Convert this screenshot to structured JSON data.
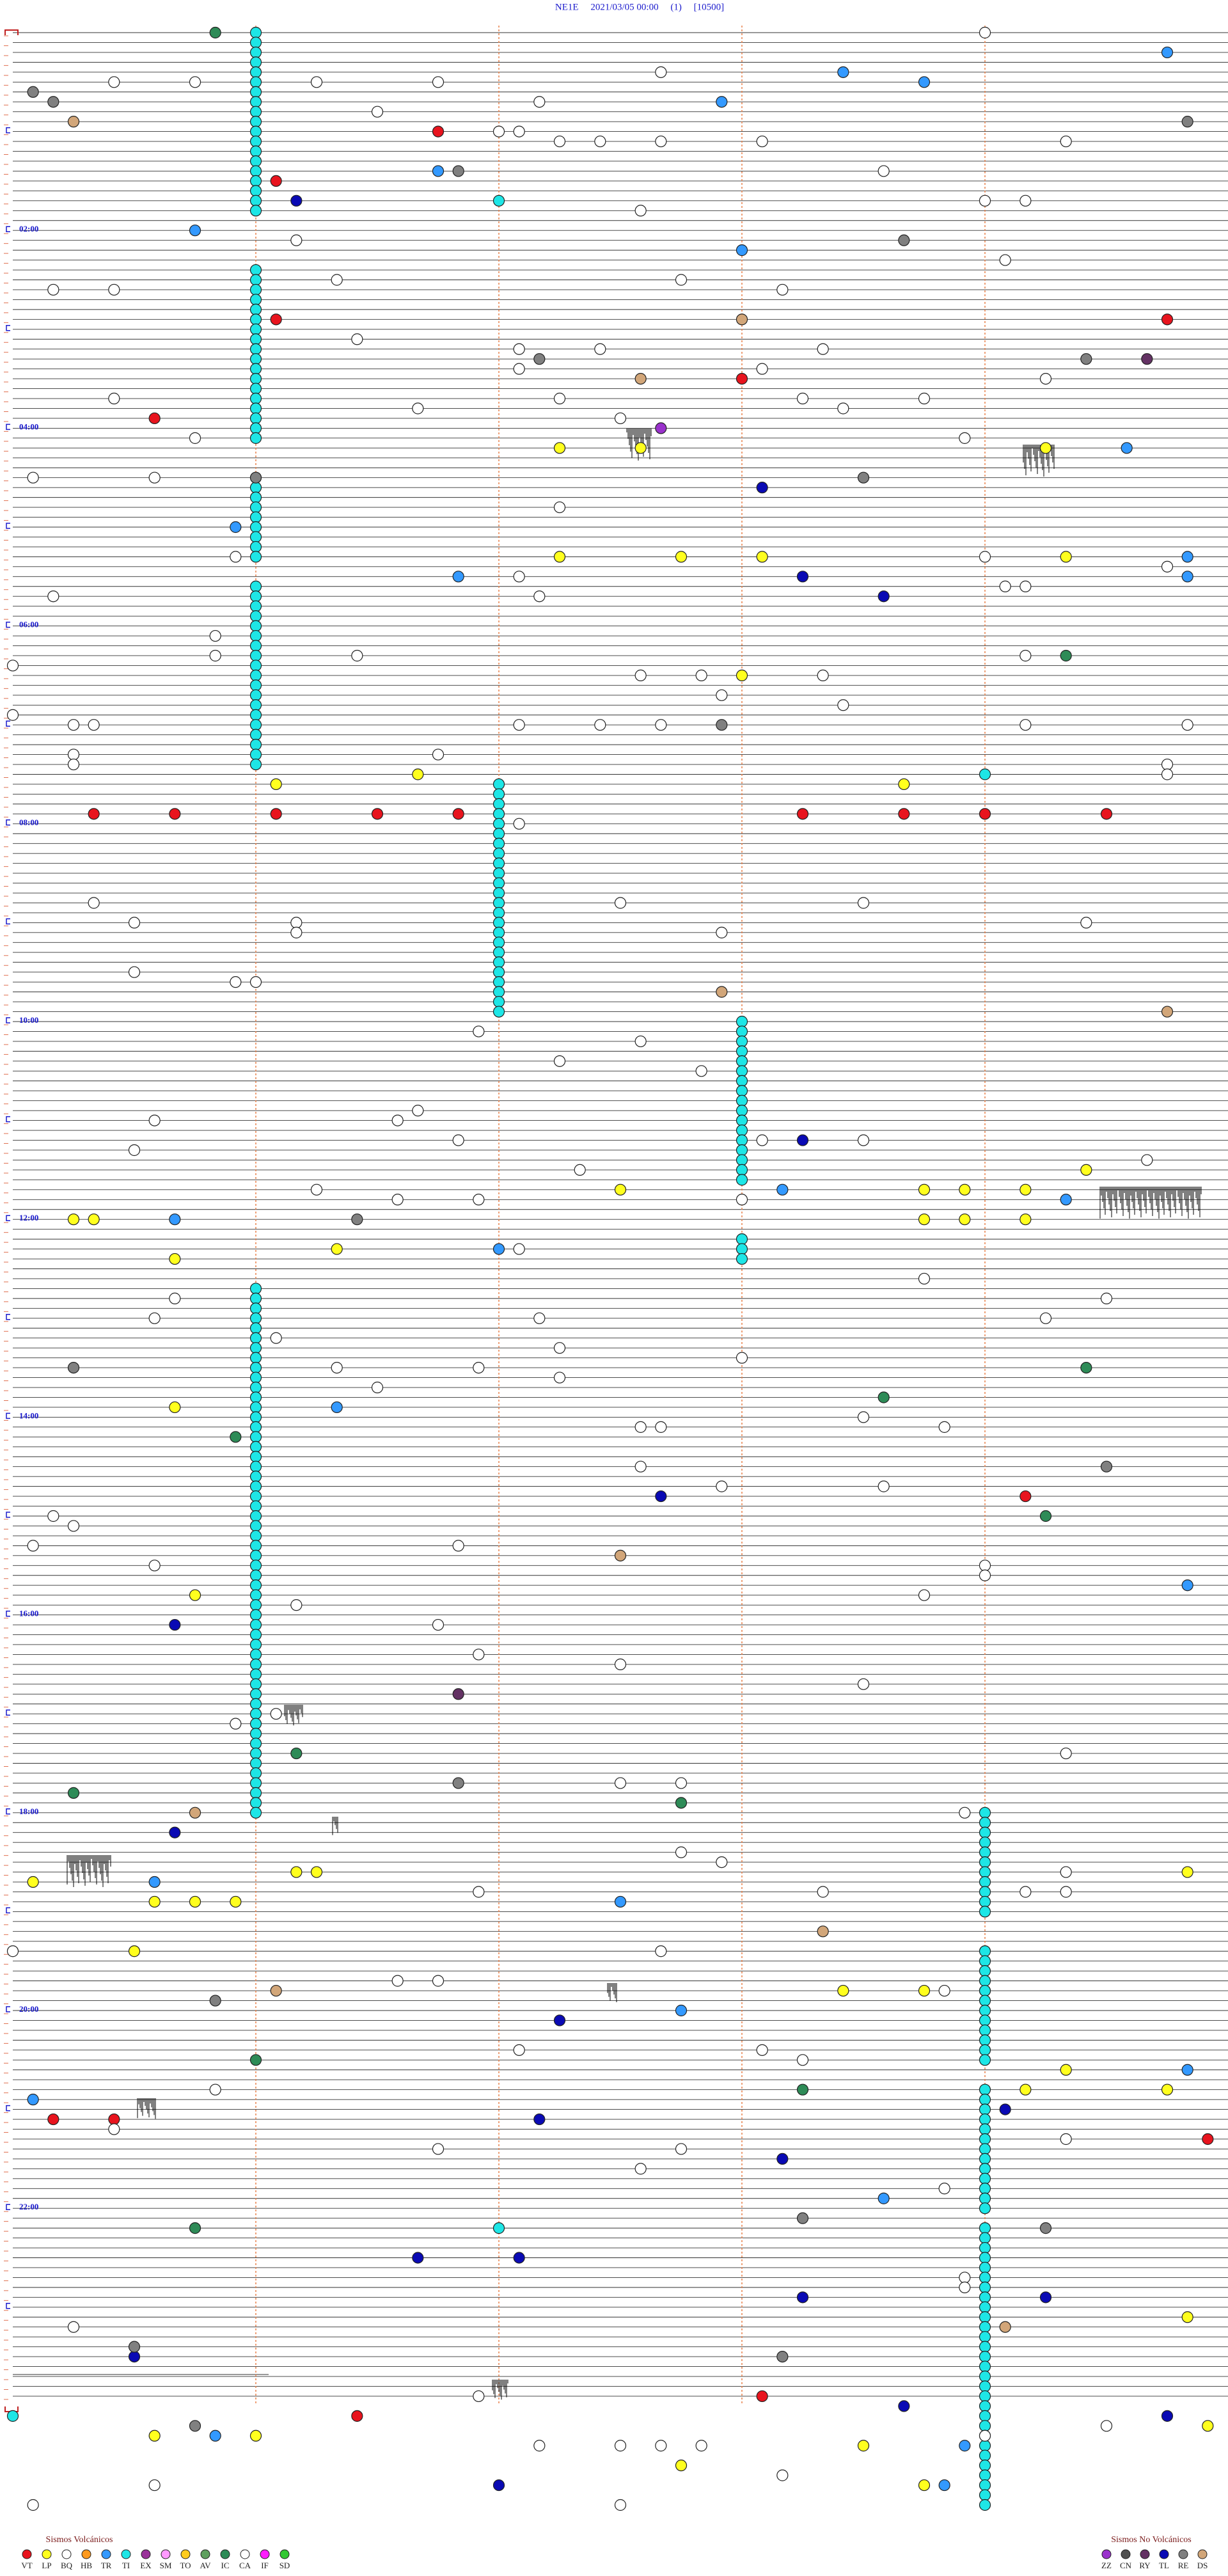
{
  "header": {
    "title": "NE1E     2021/03/05 00:00     (1)     [10500]"
  },
  "time_labels": [
    "02:00",
    "04:00",
    "06:00",
    "08:00",
    "10:00",
    "12:00",
    "14:00",
    "16:00",
    "18:00",
    "20:00",
    "22:00"
  ],
  "legend": {
    "volcanic": {
      "title": "Sismos Volcánicos",
      "items": [
        {
          "code": "VT",
          "color": "#e8141e",
          "t": [
            62.1,
            91.3,
            175.3,
            179.7,
            213.6,
            234.7,
            474.4,
            474.8,
            475.3,
            475.8,
            476.2,
            477.9,
            478.4,
            478.8,
            479.4,
            893.0,
            1266.2,
            1266.5,
            1283.9,
            1437.7,
            1447.7
          ]
        },
        {
          "code": "LP",
          "color": "#ffff1e",
          "t": [
            254.7,
            255.1,
            257.1,
            320.7,
            321.3,
            321.7,
            323.2,
            393.6,
            457.3,
            452.0,
            460.4,
            695.3,
            705.0,
            706.5,
            706.7,
            707.0,
            720.3,
            720.4,
            724.5,
            724.7,
            725.0,
            739.6,
            744.8,
            834.8,
            948.9,
            1117.4,
            1117.5,
            1122.1,
            1121.8,
            1134.7,
            1134.9,
            1135.1,
            1164.6,
            1192.1,
            1192.5,
            1192.8,
            1241.2,
            1253.0,
            1253.7,
            1391.8,
            1458.7,
            1459.2,
            1479.3,
            1492.5,
            1468.2,
            1457.9
          ]
        },
        {
          "code": "BQ",
          "color": "#ffffff"
        },
        {
          "code": "HB",
          "color": "#ff9a1e"
        },
        {
          "code": "TR",
          "color": "#3399ff",
          "t": [
            17.7,
            28.1,
            34.5,
            45.5,
            86.1,
            120.9,
            135.6,
            257.5,
            301.1,
            323.8,
            335.8,
            332.2,
            705.8,
            713.2,
            720.8,
            740.4,
            835.6,
            947.8,
            1122.7,
            1137.0,
            1203.3,
            1241.8,
            1254.1,
            1318.3,
            1459.0,
            1492.6,
            1468.7
          ]
        },
        {
          "code": "TI",
          "color": "#1ee6e6",
          "t": [
            104.4,
            454.8,
            1334.4,
            1446.0
          ],
          "runs": [
            {
              "t": 1.2,
              "n": 19
            },
            {
              "t": 145.2,
              "n": 18
            },
            {
              "t": 271.2,
              "n": 9
            },
            {
              "t": 337.2,
              "n": 19
            },
            {
              "t": 458.4,
              "n": 24
            },
            {
              "t": 603.6,
              "n": 17
            },
            {
              "t": 735.6,
              "n": 3
            },
            {
              "t": 763.2,
              "n": 13
            },
            {
              "t": 841.2,
              "n": 41
            },
            {
              "t": 1084.8,
              "n": 11
            },
            {
              "t": 1168.8,
              "n": 12
            },
            {
              "t": 1252.8,
              "n": 13
            },
            {
              "t": 1336.8,
              "n": 29
            }
          ]
        },
        {
          "code": "EX",
          "color": "#9a329a"
        },
        {
          "code": "SM",
          "color": "#ff9aff"
        },
        {
          "code": "TO",
          "color": "#ffcc1e"
        },
        {
          "code": "AV",
          "color": "#5fa05f"
        },
        {
          "code": "IC",
          "color": "#2e8b57",
          "t": [
            1.0,
            383.2,
            815.3,
            832.3,
            853.1,
            905.1,
            1045.4,
            1068.3,
            1077.3,
            1231.2,
            1251.9,
            1332.9
          ]
        },
        {
          "code": "CA",
          "color": "#ffffff",
          "t": [
            4.8,
            27.2,
            30.5,
            30.9,
            31.5,
            32.1,
            44.6,
            49.8,
            62.4,
            62.5,
            68.7,
            68.9,
            69.2,
            69.7,
            71.2,
            88.3,
            111.1,
            106.8,
            107.0,
            127.4,
            142.9,
            151.6,
            153.3,
            156.5,
            156.2,
            159.8,
            187.7,
            194.5,
            194.9,
            196.0,
            206.5,
            207.7,
            215.1,
            222.5,
            224.7,
            225.9,
            226.5,
            230.0,
            232.1,
            237.0,
            246.9,
            250.7,
            270.7,
            270.1,
            290.7,
            319.1,
            322.8,
            329.7,
            332.5,
            340.9,
            341.0,
            342.2,
            344.6,
            367.0,
            379.0,
            379.7,
            383.0,
            384.0,
            393.1,
            393.4,
            394.0,
            405.5,
            414.0,
            420.3,
            420.4,
            422.5,
            422.9,
            423.2,
            412.1,
            425.0,
            425.8,
            449.7,
            438.3,
            444.3,
            440.1,
            455.7,
            482.5,
            528.4,
            540.6,
            531.0,
            532.2,
            541.4,
            547.4,
            549.5,
            545.3,
            570.6,
            577.1,
            577.2,
            608.3,
            615.1,
            626.7,
            633.4,
            656.0,
            660.7,
            661.9,
            674.2,
            675.7,
            676.2,
            678.6,
            689.6,
            692.8,
            703.5,
            709.9,
            710.3,
            711.6,
            740.5,
            773.4,
            768.8,
            780.7,
            760.5,
            785.1,
            782.6,
            800.7,
            807.6,
            793.3,
            811.6,
            812.3,
            818.7,
            823.8,
            844.2,
            850.6,
            849.1,
            849.2,
            873.1,
            885.5,
            886.3,
            900.2,
            906.3,
            918.1,
            920.2,
            930.7,
            934.8,
            940.8,
            952.5,
            955.4,
            968.1,
            986.3,
            993.0,
            1006.2,
            1021.3,
            1027.1,
            1049.2,
            1065.3,
            1065.0,
            1084.7,
            1121.2,
            1113.5,
            1107.3,
            1133.2,
            1133.0,
            1132.0,
            1130.3,
            1164.0,
            1167.2,
            1183.9,
            1184.1,
            1192.6,
            1226.5,
            1227.7,
            1233.9,
            1249.0,
            1272.5,
            1287.3,
            1283.2,
            1299.1,
            1286.1,
            1312.6,
            1366.7,
            1372.7,
            1392.3,
            1500.1,
            1503.0,
            1457.4,
            1467.2,
            1467.0,
            1467.4,
            1466.6,
            1462.8,
            1488.7,
            1485.8,
            1436.3
          ]
        },
        {
          "code": "IF",
          "color": "#ff1eff"
        },
        {
          "code": "SD",
          "color": "#32c832"
        }
      ]
    },
    "non_volcanic": {
      "title": "Sismos No Volcánicos",
      "items": [
        {
          "code": "ZZ",
          "color": "#9a32cc",
          "t": [
            243.2
          ]
        },
        {
          "code": "CN",
          "color": "#505050"
        },
        {
          "code": "RY",
          "color": "#643264",
          "t": [
            203.6,
            1010.2
          ]
        },
        {
          "code": "TL",
          "color": "#0a0ab4",
          "t": [
            103.4,
            279.7,
            333.9,
            346.3,
            675.9,
            891.2,
            966.8,
            1092.8,
            1208.7,
            1268.6,
            1264.9,
            1293.8,
            1352.0,
            1352.5,
            1379.1,
            1377.9,
            1410.6,
            1444.4,
            1490.4,
            1451.7
          ]
        },
        {
          "code": "RE",
          "color": "#808080",
          "t": [
            36.1,
            42.2,
            59.8,
            86.2,
            130.4,
            200.6,
            203.3,
            274.2,
            271.2,
            423.5,
            721.7,
            810.3,
            875.4,
            1064.2,
            1195.0,
            1329.9,
            1337.1,
            1404.6,
            1413.8,
            1452.9
          ]
        },
        {
          "code": "DS",
          "color": "#d2a679",
          "t": [
            54.3,
            177.6,
            213.1,
            585.5,
            599.7,
            927.0,
            1080.9,
            1156.0,
            1189.3,
            1396.9
          ]
        }
      ]
    }
  }
}
